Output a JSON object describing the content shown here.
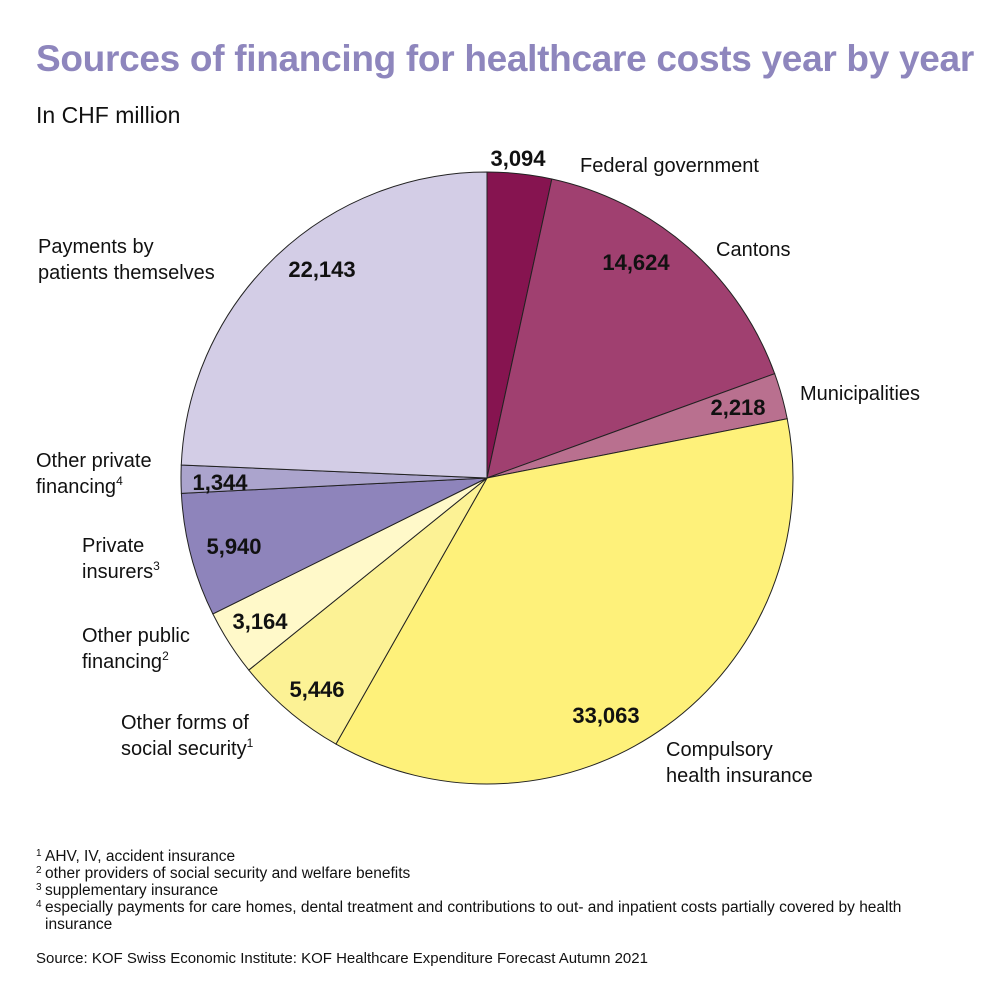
{
  "chart_data": {
    "type": "pie",
    "title": "Sources of financing for healthcare costs year by year",
    "subtitle": "In CHF million",
    "start_angle_deg": 0,
    "direction": "clockwise",
    "slices": [
      {
        "label_lines": [
          "Federal government"
        ],
        "sup": "",
        "value": 3094,
        "value_label": "3,094",
        "color": "#861450"
      },
      {
        "label_lines": [
          "Cantons"
        ],
        "sup": "",
        "value": 14624,
        "value_label": "14,624",
        "color": "#a04070"
      },
      {
        "label_lines": [
          "Municipalities"
        ],
        "sup": "",
        "value": 2218,
        "value_label": "2,218",
        "color": "#b9708f"
      },
      {
        "label_lines": [
          "Compulsory",
          "health insurance"
        ],
        "sup": "",
        "value": 33063,
        "value_label": "33,063",
        "color": "#fef17a"
      },
      {
        "label_lines": [
          "Other forms of",
          "social security"
        ],
        "sup": "1",
        "value": 5446,
        "value_label": "5,446",
        "color": "#fcf295"
      },
      {
        "label_lines": [
          "Other public",
          "financing"
        ],
        "sup": "2",
        "value": 3164,
        "value_label": "3,164",
        "color": "#fff9c9"
      },
      {
        "label_lines": [
          "Private",
          "insurers"
        ],
        "sup": "3",
        "value": 5940,
        "value_label": "5,940",
        "color": "#8e84bb"
      },
      {
        "label_lines": [
          "Other private",
          "financing"
        ],
        "sup": "4",
        "value": 1344,
        "value_label": "1,344",
        "color": "#aba4cd"
      },
      {
        "label_lines": [
          "Payments by",
          "patients themselves"
        ],
        "sup": "",
        "value": 22143,
        "value_label": "22,143",
        "color": "#d3cde6"
      }
    ]
  },
  "footnotes": [
    {
      "mark": "1",
      "text": "AHV, IV, accident insurance"
    },
    {
      "mark": "2",
      "text": "other providers of social security and welfare benefits"
    },
    {
      "mark": "3",
      "text": "supplementary insurance"
    },
    {
      "mark": "4",
      "text": "especially payments for care homes, dental treatment and contributions to out- and inpatient costs partially covered by health insurance"
    }
  ],
  "source": "Source: KOF Swiss Economic Institute: KOF Healthcare Expenditure Forecast Autumn 2021"
}
